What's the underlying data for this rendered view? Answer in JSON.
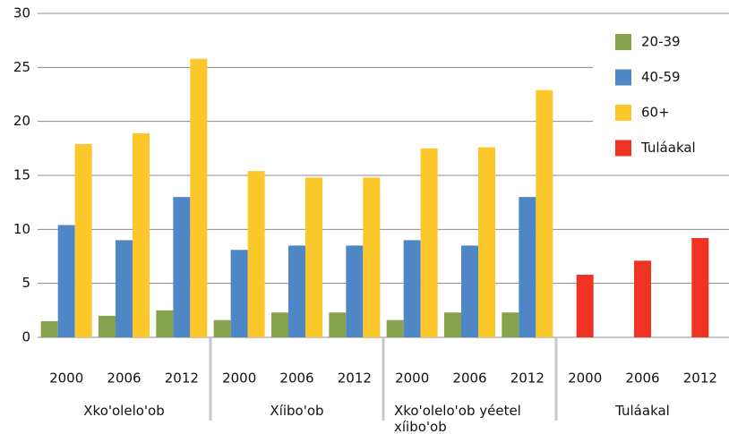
{
  "chart_data": {
    "type": "bar",
    "categories": [
      "2000",
      "2006",
      "2012",
      "2000",
      "2006",
      "2012",
      "2000",
      "2006",
      "2012",
      "2000",
      "2006",
      "2012"
    ],
    "groups": [
      "Xko'olelo'ob",
      "Xíibo'ob",
      "Xko'olelo'ob yéetel xíibo'ob",
      "Tuláakal"
    ],
    "series": [
      {
        "name": "20-39",
        "color": "#86a24d",
        "values": [
          1.5,
          2.0,
          2.5,
          1.6,
          2.3,
          2.3,
          1.6,
          2.3,
          2.3,
          null,
          null,
          null
        ]
      },
      {
        "name": "40-59",
        "color": "#4e86c6",
        "values": [
          10.4,
          9.0,
          13.0,
          8.1,
          8.5,
          8.5,
          9.0,
          8.5,
          13.0,
          null,
          null,
          null
        ]
      },
      {
        "name": "60+",
        "color": "#fcc72a",
        "values": [
          17.9,
          18.9,
          25.8,
          15.4,
          14.8,
          14.8,
          17.5,
          17.6,
          22.9,
          null,
          null,
          null
        ]
      },
      {
        "name": "Tuláakal",
        "color": "#ee3323",
        "values": [
          null,
          null,
          null,
          null,
          null,
          null,
          null,
          null,
          null,
          5.8,
          7.1,
          9.2
        ]
      }
    ],
    "ylim": [
      0,
      30
    ],
    "yticks": [
      0,
      5,
      10,
      15,
      20,
      25,
      30
    ],
    "grid": true,
    "legend": "top-right"
  }
}
